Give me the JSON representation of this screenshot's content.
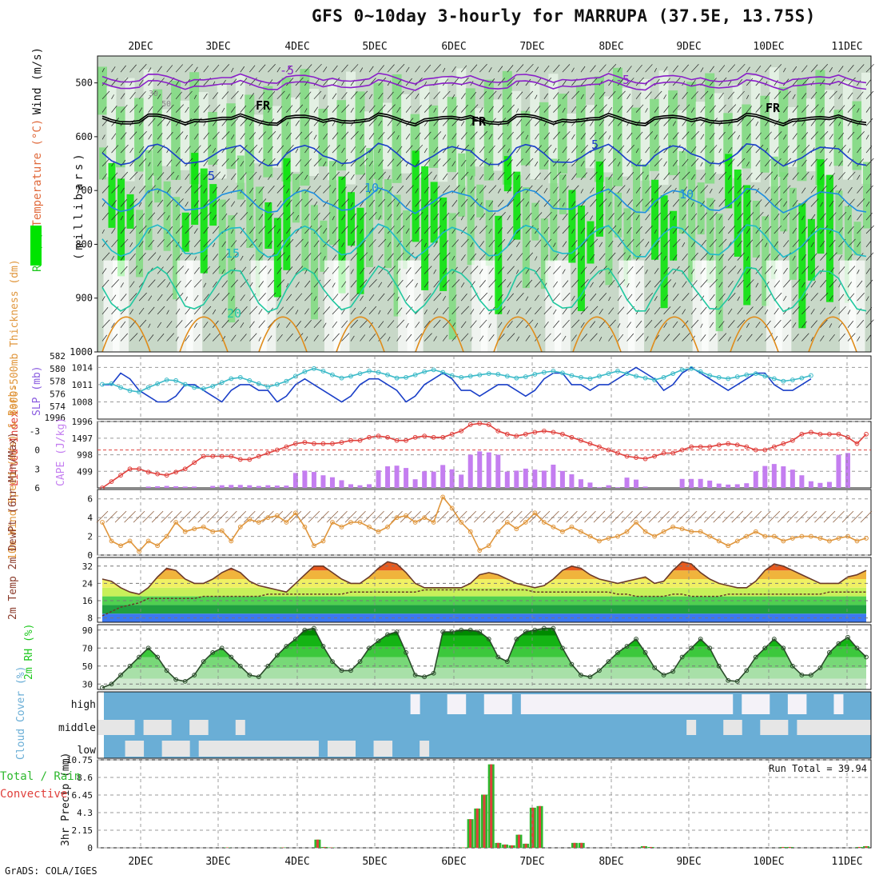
{
  "title": "GFS 0~10day 3-hourly for MARRUPA (37.5E, 13.75S)",
  "credit": "GrADS: COLA/IGES",
  "colors": {
    "rh_dark": "#00e400",
    "rh_mid": "#7fdc7f",
    "rh_light": "#c8d8c8",
    "rh_pale": "#e8f4e8",
    "slp": "#1a3fc8",
    "thickness": "#3bbac8",
    "lifted_index": "#e0403c",
    "cape": "#c47ef0",
    "wind_speed": "#e0963c",
    "rh2m": "#1ec81e",
    "cloud": "#6aaed6",
    "cloud_clear": "#e6e6e6",
    "precip_total": "#2db82d",
    "precip_conv": "#e0403c"
  },
  "chart_data": [
    {
      "type": "heatmap",
      "panel": "upper-air",
      "ylabel_parts": [
        {
          "text": "RH (%)",
          "color": "#1ec81e"
        },
        {
          "text": "Temperature (°C)",
          "color": "#e06a3c"
        },
        {
          "text": "Wind (m/s)",
          "color": "#111111"
        }
      ],
      "y_axis_label": "(millibars)",
      "y_ticks": [
        500,
        600,
        700,
        800,
        900,
        1000
      ],
      "ylim": [
        1000,
        450
      ],
      "contour_labels": [
        "-5",
        "-5",
        "FR",
        "FR",
        "FR",
        "5",
        "5",
        "10",
        "10",
        "15",
        "20",
        "30",
        "50"
      ]
    },
    {
      "type": "line",
      "panel": "slp-thickness",
      "ylabel_left": "1000-500mb Thickness (dm)",
      "ylabel_right": "SLP (mb)",
      "left_ticks": [
        574,
        576,
        578,
        580,
        582
      ],
      "right_ticks": [
        1008,
        1011,
        1014
      ],
      "series": [
        {
          "name": "SLP (mb)",
          "values": [
            1011,
            1011,
            1013,
            1012,
            1010,
            1009,
            1008,
            1008,
            1009,
            1011,
            1011,
            1010,
            1009,
            1008,
            1010,
            1011,
            1011,
            1010,
            1010,
            1008,
            1009,
            1011,
            1012,
            1011,
            1010,
            1009,
            1008,
            1009,
            1011,
            1012,
            1012,
            1011,
            1010,
            1008,
            1009,
            1011,
            1012,
            1013,
            1012,
            1010,
            1010,
            1009,
            1010,
            1011,
            1011,
            1010,
            1009,
            1010,
            1012,
            1013,
            1013,
            1011,
            1011,
            1010,
            1011,
            1011,
            1012,
            1013,
            1014,
            1013,
            1012,
            1010,
            1011,
            1013,
            1014,
            1013,
            1012,
            1011,
            1010,
            1011,
            1012,
            1013,
            1013,
            1011,
            1010,
            1010,
            1011,
            1012
          ]
        },
        {
          "name": "Thickness (dm)",
          "values": [
            577.5,
            577.6,
            577.0,
            576.5,
            576.3,
            577.0,
            577.6,
            578.2,
            578.1,
            577.5,
            577.0,
            576.8,
            577.2,
            577.8,
            578.4,
            578.6,
            578.1,
            577.6,
            577.1,
            577.5,
            578.0,
            578.8,
            579.5,
            580.0,
            579.6,
            579.0,
            578.5,
            578.8,
            579.2,
            579.6,
            579.4,
            579.0,
            578.5,
            578.6,
            579.0,
            579.5,
            579.8,
            579.4,
            578.9,
            578.6,
            578.8,
            579.0,
            579.2,
            579.1,
            578.8,
            578.5,
            578.7,
            579.1,
            579.4,
            579.6,
            579.3,
            578.9,
            578.6,
            578.4,
            578.8,
            579.2,
            579.6,
            579.2,
            578.8,
            578.5,
            578.2,
            578.6,
            579.2,
            579.8,
            580.0,
            579.5,
            578.9,
            578.6,
            578.4,
            578.7,
            579.0,
            579.2,
            578.8,
            578.4,
            578.0,
            578.2,
            578.5,
            578.9
          ]
        }
      ]
    },
    {
      "type": "bar",
      "panel": "cape-lifted-index",
      "ylabel_left": "Lifted Index",
      "ylabel_right": "CAPE (J/kg)",
      "left_ticks": [
        "-3",
        "0",
        "3",
        "6"
      ],
      "right_ticks": [
        499,
        998,
        1497,
        1996
      ],
      "series": [
        {
          "name": "CAPE (J/kg)",
          "values": [
            0,
            0,
            0,
            0,
            0,
            40,
            50,
            60,
            50,
            40,
            40,
            0,
            60,
            80,
            90,
            90,
            80,
            60,
            80,
            70,
            70,
            450,
            520,
            480,
            380,
            320,
            230,
            110,
            80,
            110,
            530,
            650,
            670,
            600,
            260,
            500,
            490,
            690,
            560,
            400,
            1000,
            1100,
            1070,
            1000,
            490,
            520,
            580,
            550,
            520,
            700,
            510,
            410,
            260,
            160,
            20,
            80,
            20,
            310,
            250,
            40,
            0,
            0,
            0,
            270,
            270,
            270,
            220,
            130,
            100,
            110,
            140,
            500,
            660,
            720,
            650,
            550,
            380,
            200,
            150,
            180,
            1000,
            1050
          ]
        },
        {
          "name": "Lifted Index",
          "values": [
            6,
            5,
            4,
            3,
            3,
            3.5,
            3.8,
            4,
            3.5,
            3,
            2,
            1,
            1,
            1,
            1,
            1.5,
            1.5,
            1,
            0.5,
            0,
            -0.5,
            -1,
            -1.2,
            -1,
            -1,
            -1,
            -1.2,
            -1.5,
            -1.5,
            -2,
            -2.2,
            -2,
            -1.5,
            -1.5,
            -2,
            -2.2,
            -2,
            -2,
            -2.5,
            -3,
            -4,
            -4.2,
            -4,
            -3,
            -2.5,
            -2.2,
            -2.5,
            -2.8,
            -3,
            -2.8,
            -2.5,
            -2,
            -1.5,
            -1,
            -0.5,
            0,
            0.5,
            1,
            1.2,
            1.4,
            1,
            0.5,
            0.5,
            0,
            -0.5,
            -0.5,
            -0.5,
            -0.8,
            -1,
            -0.8,
            -0.5,
            0,
            0,
            -0.5,
            -1,
            -1.5,
            -2.5,
            -2.8,
            -2.5,
            -2.5,
            -2.5,
            -2,
            -1,
            -2.5
          ]
        }
      ]
    },
    {
      "type": "line",
      "panel": "wind",
      "ylabel": "10m Wind Speed (m/s) & Barbs",
      "y_ticks": [
        0,
        2,
        4,
        6
      ],
      "ylim": [
        0,
        7
      ],
      "series": [
        {
          "name": "10m Wind Speed",
          "values": [
            3.5,
            1.5,
            1.0,
            1.5,
            0.4,
            1.5,
            1.0,
            2.0,
            3.5,
            2.5,
            2.8,
            3.0,
            2.5,
            2.6,
            1.5,
            3.0,
            3.8,
            3.5,
            4.0,
            4.2,
            3.5,
            4.5,
            3.0,
            1.0,
            1.5,
            3.5,
            3.0,
            3.5,
            3.5,
            3.0,
            2.5,
            3.0,
            4.0,
            4.2,
            3.5,
            4.0,
            3.5,
            6.2,
            5.0,
            3.5,
            2.5,
            0.5,
            1.0,
            2.5,
            3.5,
            2.8,
            3.5,
            4.5,
            3.5,
            3.0,
            2.5,
            3.0,
            2.5,
            2.0,
            1.5,
            1.8,
            2.0,
            2.5,
            3.5,
            2.5,
            2.0,
            2.5,
            3.0,
            2.8,
            2.5,
            2.5,
            2.0,
            1.5,
            1.0,
            1.5,
            2.0,
            2.5,
            2.0,
            2.0,
            1.5,
            1.8,
            2.0,
            2.0,
            1.8,
            1.5,
            1.8,
            2.0,
            1.5,
            1.8
          ]
        }
      ]
    },
    {
      "type": "area",
      "panel": "temperature",
      "ylabel": "2m Temp 2m DewPt (6hr Min/Max)",
      "y_ticks": [
        8,
        16,
        24,
        32
      ],
      "ylim": [
        6,
        36
      ],
      "series": [
        {
          "name": "2m Temp",
          "values": [
            26,
            25,
            22,
            20,
            19,
            22,
            27,
            31,
            30,
            26,
            24,
            24,
            26,
            29,
            31,
            29,
            25,
            23,
            22,
            21,
            20,
            24,
            28,
            32,
            32,
            29,
            26,
            24,
            24,
            27,
            31,
            34,
            33,
            29,
            24,
            22,
            22,
            22,
            22,
            22,
            24,
            28,
            29,
            28,
            26,
            24,
            23,
            22,
            23,
            26,
            30,
            32,
            31,
            28,
            26,
            25,
            24,
            25,
            26,
            27,
            24,
            25,
            30,
            34,
            33,
            29,
            26,
            24,
            23,
            22,
            22,
            25,
            30,
            33,
            32,
            30,
            28,
            26,
            24,
            24,
            24,
            27,
            28,
            30
          ]
        },
        {
          "name": "2m DewPt",
          "values": [
            9,
            11,
            13,
            14,
            15,
            17,
            17,
            17,
            17,
            17,
            17,
            18,
            18,
            18,
            18,
            18,
            18,
            18,
            19,
            19,
            19,
            19,
            19,
            19,
            19,
            19,
            19,
            20,
            20,
            20,
            20,
            20,
            20,
            20,
            20,
            21,
            21,
            21,
            21,
            21,
            21,
            21,
            21,
            21,
            21,
            21,
            21,
            20,
            20,
            20,
            20,
            20,
            20,
            20,
            20,
            20,
            19,
            19,
            18,
            18,
            18,
            18,
            19,
            19,
            18,
            18,
            18,
            18,
            19,
            19,
            19,
            19,
            19,
            19,
            19,
            19,
            19,
            19,
            19,
            20,
            20,
            20,
            20,
            20
          ]
        }
      ]
    },
    {
      "type": "area",
      "panel": "rh2m",
      "ylabel": "2m RH (%)",
      "y_ticks": [
        30,
        50,
        70,
        90
      ],
      "ylim": [
        24,
        96
      ],
      "series": [
        {
          "name": "2m RH",
          "values": [
            26,
            30,
            40,
            50,
            60,
            70,
            60,
            45,
            35,
            33,
            40,
            55,
            65,
            70,
            60,
            50,
            40,
            38,
            50,
            62,
            72,
            80,
            90,
            92,
            72,
            55,
            45,
            45,
            55,
            70,
            78,
            85,
            88,
            65,
            40,
            38,
            42,
            88,
            88,
            90,
            90,
            88,
            80,
            60,
            55,
            80,
            88,
            90,
            92,
            92,
            70,
            52,
            40,
            38,
            45,
            55,
            65,
            72,
            80,
            65,
            48,
            40,
            44,
            60,
            70,
            80,
            70,
            50,
            34,
            33,
            45,
            60,
            70,
            80,
            70,
            50,
            40,
            40,
            48,
            65,
            75,
            82,
            70,
            60
          ]
        }
      ]
    },
    {
      "type": "table",
      "panel": "cloud-cover",
      "ylabel": "Cloud Cover (%)",
      "levels": [
        "high",
        "middle",
        "low"
      ]
    },
    {
      "type": "bar",
      "panel": "precip",
      "ylabel": "3hr Precip (mm)",
      "legend": [
        "Total / Rain",
        "Convective"
      ],
      "run_total": "Run Total = 39.94",
      "y_ticks": [
        "0",
        "2.15",
        "4.3",
        "6.45",
        "8.6",
        "10.75"
      ],
      "ylim": [
        0,
        10.75
      ],
      "series": [
        {
          "name": "Total / Rain",
          "values": [
            0,
            0,
            0,
            0,
            0,
            0,
            0,
            0,
            0,
            0,
            0,
            0,
            0,
            0,
            0,
            0,
            0,
            0,
            0.05,
            0,
            0,
            0,
            0,
            0,
            0,
            0,
            0.05,
            0,
            0,
            0,
            0,
            1.0,
            0.1,
            0.05,
            0,
            0,
            0,
            0,
            0,
            0,
            0,
            0,
            0,
            0,
            0,
            0,
            0,
            0,
            0,
            0,
            0,
            0,
            0.05,
            3.5,
            4.8,
            6.5,
            10.2,
            0.6,
            0.4,
            0.3,
            1.6,
            0.5,
            4.9,
            5.1,
            0,
            0,
            0,
            0,
            0.6,
            0.6,
            0,
            0,
            0,
            0,
            0,
            0,
            0,
            0,
            0.2,
            0.1,
            0,
            0,
            0,
            0,
            0,
            0,
            0,
            0,
            0,
            0,
            0,
            0,
            0,
            0,
            0,
            0,
            0,
            0,
            0.1,
            0.1,
            0,
            0,
            0,
            0,
            0,
            0,
            0,
            0,
            0,
            0.1,
            0.2
          ]
        },
        {
          "name": "Convective",
          "values": [
            0,
            0,
            0,
            0,
            0,
            0,
            0,
            0,
            0,
            0,
            0,
            0,
            0,
            0,
            0,
            0,
            0,
            0,
            0.05,
            0,
            0,
            0,
            0,
            0,
            0,
            0,
            0.05,
            0,
            0,
            0,
            0,
            1.0,
            0.1,
            0.05,
            0,
            0,
            0,
            0,
            0,
            0,
            0,
            0,
            0,
            0,
            0,
            0,
            0,
            0,
            0,
            0,
            0,
            0,
            0.05,
            3.5,
            4.8,
            6.5,
            10.2,
            0.6,
            0.4,
            0.3,
            1.6,
            0.5,
            4.9,
            5.1,
            0,
            0,
            0,
            0,
            0.6,
            0.6,
            0,
            0,
            0,
            0,
            0,
            0,
            0,
            0,
            0.2,
            0.1,
            0,
            0,
            0,
            0,
            0,
            0,
            0,
            0,
            0,
            0,
            0,
            0,
            0,
            0,
            0,
            0,
            0,
            0,
            0.1,
            0.1,
            0,
            0,
            0,
            0,
            0,
            0,
            0,
            0,
            0,
            0.1,
            0.2
          ]
        }
      ]
    },
    {
      "type": "line",
      "panel": "time-axis",
      "x_categories": [
        "2DEC",
        "3DEC",
        "4DEC",
        "5DEC",
        "6DEC",
        "7DEC",
        "8DEC",
        "9DEC",
        "10DEC",
        "11DEC"
      ]
    }
  ]
}
